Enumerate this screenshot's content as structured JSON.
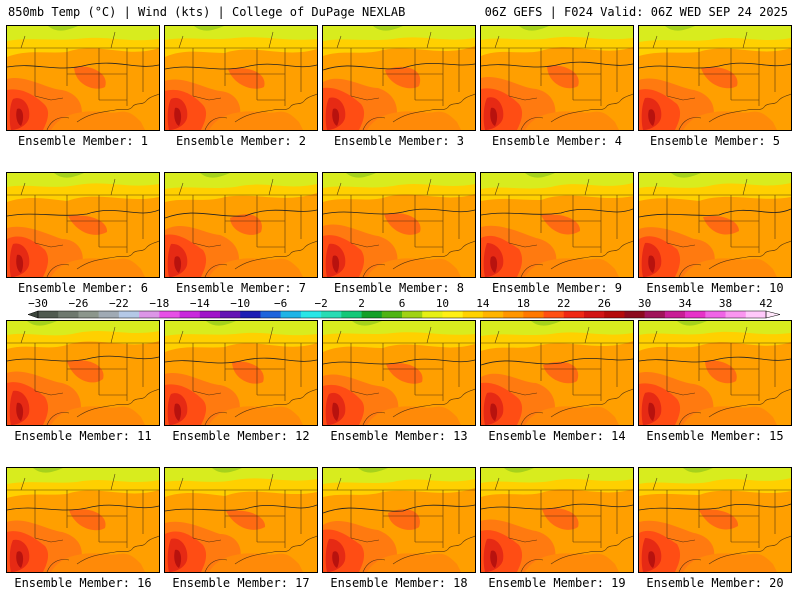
{
  "header": {
    "left": "850mb Temp (°C) | Wind (kts) | College of DuPage NEXLAB",
    "right": "06Z GEFS | F024 Valid: 06Z WED SEP 24 2025"
  },
  "panels": [
    {
      "label": "Ensemble Member: 1"
    },
    {
      "label": "Ensemble Member: 2"
    },
    {
      "label": "Ensemble Member: 3"
    },
    {
      "label": "Ensemble Member: 4"
    },
    {
      "label": "Ensemble Member: 5"
    },
    {
      "label": "Ensemble Member: 6"
    },
    {
      "label": "Ensemble Member: 7"
    },
    {
      "label": "Ensemble Member: 8"
    },
    {
      "label": "Ensemble Member: 9"
    },
    {
      "label": "Ensemble Member: 10"
    },
    {
      "label": "Ensemble Member: 11"
    },
    {
      "label": "Ensemble Member: 12"
    },
    {
      "label": "Ensemble Member: 13"
    },
    {
      "label": "Ensemble Member: 14"
    },
    {
      "label": "Ensemble Member: 15"
    },
    {
      "label": "Ensemble Member: 16"
    },
    {
      "label": "Ensemble Member: 17"
    },
    {
      "label": "Ensemble Member: 18"
    },
    {
      "label": "Ensemble Member: 19"
    },
    {
      "label": "Ensemble Member: 20"
    }
  ],
  "colorbar": {
    "ticks": [
      "-30",
      "-26",
      "-22",
      "-18",
      "-14",
      "-10",
      "-6",
      "-2",
      "2",
      "6",
      "10",
      "14",
      "18",
      "22",
      "26",
      "30",
      "34",
      "38",
      "42"
    ],
    "colors": [
      "#505a50",
      "#6e786e",
      "#8c968c",
      "#a0aab4",
      "#b4c8e6",
      "#dc96e6",
      "#e650e6",
      "#c828dc",
      "#a014c8",
      "#6414b4",
      "#1e1eb4",
      "#1e64dc",
      "#1eb4e6",
      "#28e6e6",
      "#28dcb4",
      "#14c878",
      "#14a028",
      "#50b414",
      "#a0d214",
      "#e6f014",
      "#fff014",
      "#ffd200",
      "#ffb400",
      "#ff9600",
      "#ff7800",
      "#ff5014",
      "#f02814",
      "#d21414",
      "#b40a0a",
      "#8c0a1e",
      "#a0145a",
      "#c81e96",
      "#e632c8",
      "#f064e6",
      "#fa96f0",
      "#ffc8fa"
    ]
  }
}
